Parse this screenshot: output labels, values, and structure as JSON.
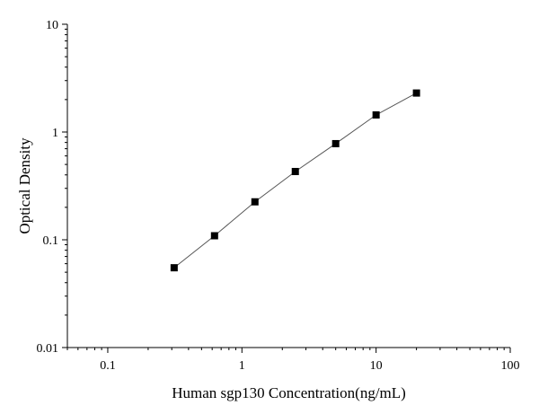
{
  "chart_data": {
    "type": "scatter",
    "title": "",
    "xlabel": "Human sgp130 Concentration(ng/mL)",
    "ylabel": "Optical Density",
    "x_scale": "log",
    "y_scale": "log",
    "xlim": [
      0.05,
      100
    ],
    "ylim": [
      0.01,
      10
    ],
    "x_ticks": [
      "0.1",
      "1",
      "10",
      "100"
    ],
    "y_ticks": [
      "0.01",
      "0.1",
      "1",
      "10"
    ],
    "grid": false,
    "legend": "none",
    "series": [
      {
        "x": [
          0.3125,
          0.625,
          1.25,
          2.5,
          5,
          10,
          20
        ],
        "y": [
          0.055,
          0.109,
          0.225,
          0.43,
          0.78,
          1.44,
          2.3
        ],
        "marker": "square",
        "fit_line": true
      }
    ],
    "colors": {
      "marker": "#000000",
      "fit_line": "#555555",
      "axis": "#000000"
    }
  }
}
